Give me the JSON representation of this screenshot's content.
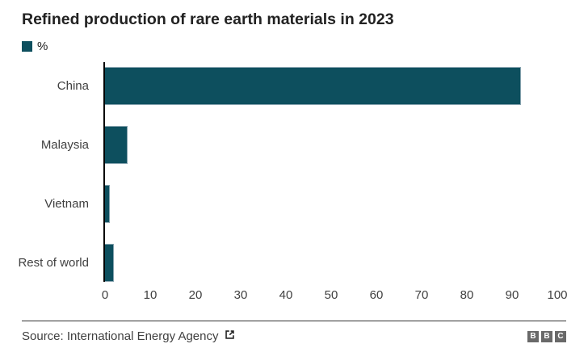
{
  "title": "Refined production of rare earth materials in 2023",
  "legend": {
    "label": "%",
    "swatch_color": "#0d4f5e"
  },
  "chart_data": {
    "type": "bar",
    "orientation": "horizontal",
    "title": "Refined production of rare earth materials in 2023",
    "unit": "%",
    "categories": [
      "China",
      "Malaysia",
      "Vietnam",
      "Rest of world"
    ],
    "values": [
      92,
      5,
      1,
      2
    ],
    "xlim": [
      0,
      100
    ],
    "x_ticks": [
      0,
      10,
      20,
      30,
      40,
      50,
      60,
      70,
      80,
      90,
      100
    ],
    "xlabel": "",
    "ylabel": "",
    "bar_color": "#0d4f5e",
    "bar_stroke_color": "#84a1ad",
    "grid": false,
    "legend_position": "top-left"
  },
  "footer": {
    "source": "Source: International Energy Agency",
    "logo_blocks": [
      "B",
      "B",
      "C"
    ]
  },
  "colors": {
    "accent_teal": "#0d4f5e",
    "title_text": "#222222",
    "label_text": "#404040",
    "axis_line": "#000000",
    "divider": "#333333",
    "logo_gray": "#696969"
  }
}
